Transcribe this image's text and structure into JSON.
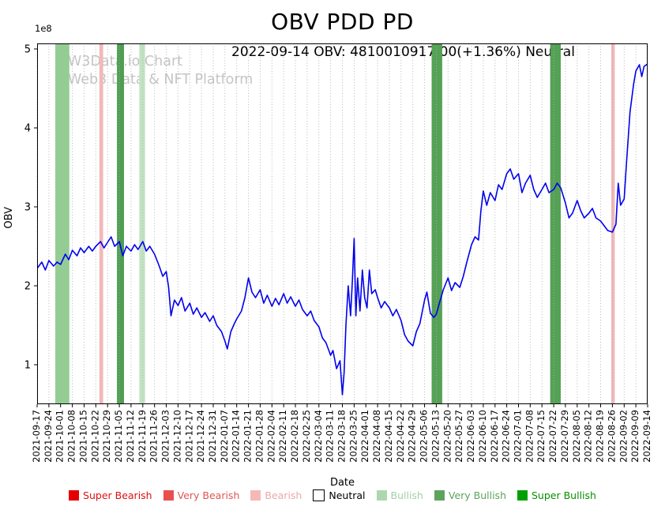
{
  "title": "OBV PDD PD",
  "annotation": "2022-09-14 OBV: 4810010917.00(+1.36%) Neutral",
  "watermark": {
    "line1": "W3Data.io Chart",
    "line2": "Web3 Data & NFT Platform"
  },
  "axes": {
    "y_label": "OBV",
    "x_label": "Date",
    "y_offset_label": "1e8",
    "y_ticks": [
      1,
      2,
      3,
      4,
      5
    ],
    "grid": "vertical-dotted"
  },
  "legend": {
    "items": [
      {
        "label": "Super Bearish",
        "color": "#e50000",
        "text_color": "#dd1111"
      },
      {
        "label": "Very Bearish",
        "color": "#e94f4f",
        "text_color": "#e05555"
      },
      {
        "label": "Bearish",
        "color": "#f5b8b8",
        "text_color": "#eda9a9"
      },
      {
        "label": "Neutral",
        "color": "#ffffff",
        "text_color": "#000000",
        "border": "#000000"
      },
      {
        "label": "Bullish",
        "color": "#aed7ae",
        "text_color": "#a3cfa3"
      },
      {
        "label": "Very Bullish",
        "color": "#5ca45c",
        "text_color": "#5ca45c"
      },
      {
        "label": "Super Bullish",
        "color": "#00a000",
        "text_color": "#089000"
      }
    ]
  },
  "chart_data": {
    "type": "line",
    "title": "OBV PDD PD",
    "xlabel": "Date",
    "ylabel": "OBV",
    "y_unit": "1e8",
    "ylim": [
      0.5,
      5.07
    ],
    "y_ticks": [
      1,
      2,
      3,
      4,
      5
    ],
    "line_color": "#0000ee",
    "grid_color": "#b0b0b0",
    "last_point": {
      "date": "2022-09-14",
      "obv": 4810010917.0,
      "change_pct": "+1.36%",
      "signal": "Neutral"
    },
    "x_tick_labels": [
      "2021-09-17",
      "2021-09-24",
      "2021-10-01",
      "2021-10-08",
      "2021-10-15",
      "2021-10-22",
      "2021-10-29",
      "2021-11-05",
      "2021-11-12",
      "2021-11-19",
      "2021-11-26",
      "2021-12-03",
      "2021-12-10",
      "2021-12-17",
      "2021-12-24",
      "2021-12-31",
      "2022-01-07",
      "2022-01-14",
      "2022-01-21",
      "2022-01-28",
      "2022-02-04",
      "2022-02-11",
      "2022-02-18",
      "2022-02-25",
      "2022-03-04",
      "2022-03-11",
      "2022-03-18",
      "2022-03-25",
      "2022-04-01",
      "2022-04-08",
      "2022-04-15",
      "2022-04-22",
      "2022-04-29",
      "2022-05-06",
      "2022-05-13",
      "2022-05-20",
      "2022-05-27",
      "2022-06-03",
      "2022-06-10",
      "2022-06-17",
      "2022-06-24",
      "2022-07-01",
      "2022-07-08",
      "2022-07-15",
      "2022-07-22",
      "2022-07-29",
      "2022-08-05",
      "2022-08-12",
      "2022-08-19",
      "2022-08-26",
      "2022-09-02",
      "2022-09-09",
      "2022-09-14"
    ],
    "bands": [
      {
        "from": 1.55,
        "to": 2.75,
        "label": "Bullish",
        "color": "#94cd94"
      },
      {
        "from": 5.3,
        "to": 5.62,
        "label": "Bearish",
        "color": "#f3b8ba"
      },
      {
        "from": 6.8,
        "to": 7.4,
        "label": "Very Bullish",
        "color": "#4f9e51"
      },
      {
        "from": 8.7,
        "to": 9.2,
        "label": "Bullish",
        "color": "#c2e3c2"
      },
      {
        "from": 33.6,
        "to": 34.5,
        "label": "Very Bullish",
        "color": "#55a155"
      },
      {
        "from": 43.7,
        "to": 44.6,
        "label": "Very Bullish",
        "color": "#55a155"
      },
      {
        "from": 48.9,
        "to": 49.2,
        "label": "Bearish",
        "color": "#f3b8ba"
      }
    ],
    "series": [
      {
        "name": "OBV",
        "points": [
          [
            0,
            2.22
          ],
          [
            0.4,
            2.3
          ],
          [
            0.7,
            2.2
          ],
          [
            1,
            2.32
          ],
          [
            1.4,
            2.25
          ],
          [
            1.7,
            2.3
          ],
          [
            2,
            2.27
          ],
          [
            2.4,
            2.4
          ],
          [
            2.7,
            2.33
          ],
          [
            3,
            2.45
          ],
          [
            3.4,
            2.38
          ],
          [
            3.7,
            2.48
          ],
          [
            4,
            2.42
          ],
          [
            4.4,
            2.5
          ],
          [
            4.7,
            2.44
          ],
          [
            5,
            2.5
          ],
          [
            5.4,
            2.56
          ],
          [
            5.7,
            2.48
          ],
          [
            6,
            2.55
          ],
          [
            6.3,
            2.62
          ],
          [
            6.6,
            2.5
          ],
          [
            7,
            2.56
          ],
          [
            7.3,
            2.38
          ],
          [
            7.6,
            2.5
          ],
          [
            8,
            2.44
          ],
          [
            8.3,
            2.52
          ],
          [
            8.6,
            2.46
          ],
          [
            9,
            2.56
          ],
          [
            9.3,
            2.44
          ],
          [
            9.6,
            2.5
          ],
          [
            10,
            2.4
          ],
          [
            10.4,
            2.25
          ],
          [
            10.7,
            2.12
          ],
          [
            11,
            2.18
          ],
          [
            11.2,
            1.98
          ],
          [
            11.4,
            1.62
          ],
          [
            11.7,
            1.82
          ],
          [
            12,
            1.75
          ],
          [
            12.3,
            1.85
          ],
          [
            12.6,
            1.68
          ],
          [
            13,
            1.78
          ],
          [
            13.3,
            1.64
          ],
          [
            13.6,
            1.72
          ],
          [
            14,
            1.6
          ],
          [
            14.3,
            1.66
          ],
          [
            14.7,
            1.55
          ],
          [
            15,
            1.62
          ],
          [
            15.3,
            1.5
          ],
          [
            15.7,
            1.42
          ],
          [
            16,
            1.3
          ],
          [
            16.2,
            1.2
          ],
          [
            16.5,
            1.42
          ],
          [
            16.8,
            1.52
          ],
          [
            17,
            1.58
          ],
          [
            17.4,
            1.68
          ],
          [
            17.7,
            1.85
          ],
          [
            18,
            2.1
          ],
          [
            18.3,
            1.92
          ],
          [
            18.6,
            1.85
          ],
          [
            19,
            1.95
          ],
          [
            19.3,
            1.78
          ],
          [
            19.6,
            1.88
          ],
          [
            20,
            1.74
          ],
          [
            20.3,
            1.84
          ],
          [
            20.6,
            1.76
          ],
          [
            21,
            1.9
          ],
          [
            21.3,
            1.78
          ],
          [
            21.6,
            1.86
          ],
          [
            22,
            1.74
          ],
          [
            22.3,
            1.82
          ],
          [
            22.6,
            1.7
          ],
          [
            23,
            1.62
          ],
          [
            23.3,
            1.68
          ],
          [
            23.6,
            1.56
          ],
          [
            24,
            1.48
          ],
          [
            24.3,
            1.34
          ],
          [
            24.6,
            1.28
          ],
          [
            25,
            1.12
          ],
          [
            25.2,
            1.18
          ],
          [
            25.5,
            0.95
          ],
          [
            25.8,
            1.05
          ],
          [
            26,
            0.62
          ],
          [
            26.15,
            0.9
          ],
          [
            26.3,
            1.5
          ],
          [
            26.5,
            2.0
          ],
          [
            26.7,
            1.62
          ],
          [
            26.85,
            2.05
          ],
          [
            27,
            2.6
          ],
          [
            27.15,
            1.62
          ],
          [
            27.3,
            2.1
          ],
          [
            27.5,
            1.68
          ],
          [
            27.7,
            2.2
          ],
          [
            27.9,
            1.85
          ],
          [
            28.1,
            1.72
          ],
          [
            28.3,
            2.2
          ],
          [
            28.5,
            1.9
          ],
          [
            28.8,
            1.95
          ],
          [
            29,
            1.85
          ],
          [
            29.3,
            1.72
          ],
          [
            29.6,
            1.8
          ],
          [
            30,
            1.72
          ],
          [
            30.3,
            1.62
          ],
          [
            30.6,
            1.7
          ],
          [
            31,
            1.56
          ],
          [
            31.3,
            1.38
          ],
          [
            31.6,
            1.3
          ],
          [
            32,
            1.24
          ],
          [
            32.3,
            1.42
          ],
          [
            32.6,
            1.52
          ],
          [
            33,
            1.82
          ],
          [
            33.2,
            1.92
          ],
          [
            33.5,
            1.65
          ],
          [
            33.8,
            1.6
          ],
          [
            34,
            1.64
          ],
          [
            34.3,
            1.8
          ],
          [
            34.6,
            1.95
          ],
          [
            35,
            2.1
          ],
          [
            35.3,
            1.94
          ],
          [
            35.6,
            2.04
          ],
          [
            36,
            1.98
          ],
          [
            36.3,
            2.12
          ],
          [
            36.6,
            2.3
          ],
          [
            37,
            2.52
          ],
          [
            37.3,
            2.62
          ],
          [
            37.6,
            2.58
          ],
          [
            37.8,
            2.95
          ],
          [
            38,
            3.2
          ],
          [
            38.3,
            3.02
          ],
          [
            38.6,
            3.18
          ],
          [
            39,
            3.08
          ],
          [
            39.3,
            3.28
          ],
          [
            39.6,
            3.22
          ],
          [
            40,
            3.42
          ],
          [
            40.3,
            3.48
          ],
          [
            40.6,
            3.35
          ],
          [
            41,
            3.42
          ],
          [
            41.3,
            3.18
          ],
          [
            41.6,
            3.3
          ],
          [
            42,
            3.4
          ],
          [
            42.3,
            3.22
          ],
          [
            42.6,
            3.12
          ],
          [
            43,
            3.22
          ],
          [
            43.3,
            3.3
          ],
          [
            43.6,
            3.18
          ],
          [
            44,
            3.22
          ],
          [
            44.3,
            3.3
          ],
          [
            44.6,
            3.24
          ],
          [
            45,
            3.05
          ],
          [
            45.3,
            2.86
          ],
          [
            45.6,
            2.92
          ],
          [
            46,
            3.08
          ],
          [
            46.3,
            2.95
          ],
          [
            46.6,
            2.86
          ],
          [
            47,
            2.92
          ],
          [
            47.3,
            2.98
          ],
          [
            47.6,
            2.86
          ],
          [
            48,
            2.82
          ],
          [
            48.3,
            2.76
          ],
          [
            48.6,
            2.7
          ],
          [
            49,
            2.68
          ],
          [
            49.3,
            2.78
          ],
          [
            49.5,
            3.3
          ],
          [
            49.7,
            3.02
          ],
          [
            50,
            3.1
          ],
          [
            50.2,
            3.55
          ],
          [
            50.5,
            4.2
          ],
          [
            50.8,
            4.55
          ],
          [
            51,
            4.72
          ],
          [
            51.3,
            4.8
          ],
          [
            51.5,
            4.65
          ],
          [
            51.7,
            4.78
          ],
          [
            52,
            4.81
          ]
        ]
      }
    ]
  }
}
